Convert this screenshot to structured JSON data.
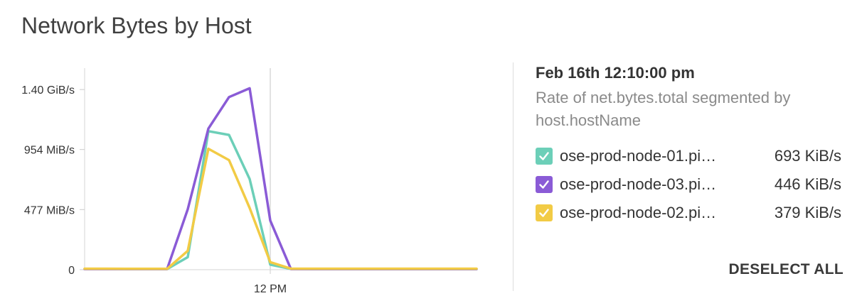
{
  "title": "Network Bytes by Host",
  "panel": {
    "timestamp": "Feb 16th 12:10:00 pm",
    "subtitle": "Rate of net.bytes.total segmented by host.hostName",
    "deselect_label": "DESELECT ALL"
  },
  "legend": [
    {
      "host": "ose-prod-node-01.pi…",
      "rate": "693 KiB/s",
      "color": "#6ccfb8",
      "checked": true
    },
    {
      "host": "ose-prod-node-03.pi…",
      "rate": "446 KiB/s",
      "color": "#8a5bd6",
      "checked": true
    },
    {
      "host": "ose-prod-node-02.pi…",
      "rate": "379 KiB/s",
      "color": "#f2cb45",
      "checked": true
    }
  ],
  "chart_data": {
    "type": "line",
    "x": [
      0,
      1,
      2,
      3,
      4,
      5,
      6,
      7,
      8,
      9,
      10,
      11,
      12,
      13,
      14,
      15,
      16,
      17,
      18,
      19
    ],
    "x_tick_labels": [
      {
        "x": 9,
        "label": "12 PM"
      }
    ],
    "y_ticks": [
      {
        "value": 0,
        "label": "0"
      },
      {
        "value": 477,
        "label": "477 MiB/s"
      },
      {
        "value": 954,
        "label": "954 MiB/s"
      },
      {
        "value": 1430,
        "label": "1.40 GiB/s"
      }
    ],
    "ylim": [
      0,
      1600
    ],
    "xlim": [
      0,
      19
    ],
    "cursor_x": 9,
    "grid": false,
    "series": [
      {
        "name": "ose-prod-node-01.pi…",
        "color": "#6ccfb8",
        "values": [
          6,
          6,
          5,
          5,
          5,
          100,
          1100,
          1070,
          720,
          40,
          6,
          5,
          5,
          5,
          5,
          5,
          5,
          5,
          5,
          5
        ]
      },
      {
        "name": "ose-prod-node-03.pi…",
        "color": "#8a5bd6",
        "values": [
          5,
          5,
          5,
          5,
          5,
          480,
          1120,
          1370,
          1440,
          390,
          5,
          5,
          5,
          5,
          5,
          5,
          5,
          5,
          5,
          5
        ]
      },
      {
        "name": "ose-prod-node-02.pi…",
        "color": "#f2cb45",
        "values": [
          8,
          8,
          7,
          7,
          7,
          150,
          960,
          870,
          490,
          60,
          8,
          8,
          8,
          8,
          8,
          8,
          8,
          8,
          8,
          8
        ]
      }
    ]
  }
}
